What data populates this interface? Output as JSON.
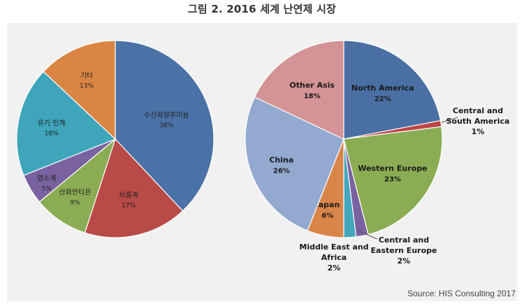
{
  "figure": {
    "title": "그림 2. 2016 세계 난연제 시장",
    "source": "Source: HIS Consulting 2017"
  },
  "chart_data": [
    {
      "type": "pie",
      "title": "",
      "slices": [
        {
          "label": "수산화알루미늄",
          "value": 38,
          "value_label": "38%",
          "color": "#4a72a6"
        },
        {
          "label": "브롬계",
          "value": 17,
          "value_label": "17%",
          "color": "#b84a47"
        },
        {
          "label": "산화안티몬",
          "value": 9,
          "value_label": "9%",
          "color": "#8aac53"
        },
        {
          "label": "염소계",
          "value": 5,
          "value_label": "5%",
          "color": "#7a62a0"
        },
        {
          "label": "유기 인계",
          "value": 18,
          "value_label": "18%",
          "color": "#3ea5bb"
        },
        {
          "label": "기타",
          "value": 13,
          "value_label": "13%",
          "color": "#db8544"
        }
      ]
    },
    {
      "type": "pie",
      "title": "",
      "slices": [
        {
          "label": "North America",
          "value": 22,
          "value_label": "22%",
          "color": "#4a6fa3"
        },
        {
          "label": "Central and South America",
          "value": 1,
          "value_label": "1%",
          "color": "#bf4646"
        },
        {
          "label": "Western Europe",
          "value": 23,
          "value_label": "23%",
          "color": "#8aac53"
        },
        {
          "label": "Central and Eastern Europe",
          "value": 2,
          "value_label": "2%",
          "color": "#7a62a0"
        },
        {
          "label": "Middle East and Africa",
          "value": 2,
          "value_label": "2%",
          "color": "#43a6bd"
        },
        {
          "label": "Japan",
          "value": 6,
          "value_label": "6%",
          "color": "#d9854a"
        },
        {
          "label": "China",
          "value": 26,
          "value_label": "26%",
          "color": "#93a9d0"
        },
        {
          "label": "Other Asis",
          "value": 18,
          "value_label": "18%",
          "color": "#d49394"
        }
      ]
    }
  ]
}
